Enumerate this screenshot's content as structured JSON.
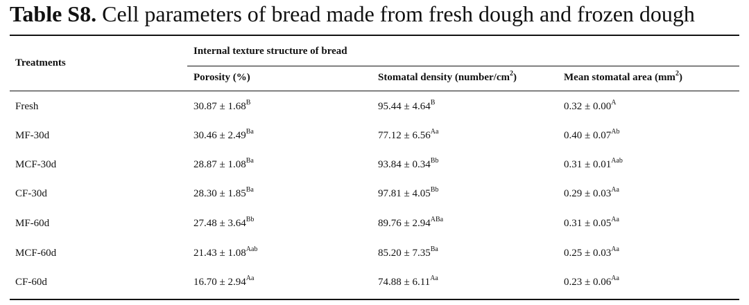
{
  "title": {
    "label": "Table S8.",
    "text": " Cell parameters of bread made from fresh dough and frozen dough"
  },
  "header": {
    "treatments": "Treatments",
    "group": "Internal texture structure of bread",
    "porosity": "Porosity (%)",
    "density_pre": "Stomatal density (number/cm",
    "density_sup": "2",
    "density_post": ")",
    "area_pre": "Mean stomatal area (mm",
    "area_sup": "2",
    "area_post": ")"
  },
  "rows": [
    {
      "treatment": "Fresh",
      "porosity": "30.87 ± 1.68",
      "porosity_sup": "B",
      "density": "95.44 ± 4.64",
      "density_sup": "B",
      "area": "0.32 ± 0.00",
      "area_sup": "A"
    },
    {
      "treatment": "MF-30d",
      "porosity": "30.46 ± 2.49",
      "porosity_sup": "Ba",
      "density": "77.12 ± 6.56",
      "density_sup": "Aa",
      "area": "0.40 ± 0.07",
      "area_sup": "Ab"
    },
    {
      "treatment": "MCF-30d",
      "porosity": "28.87 ± 1.08",
      "porosity_sup": "Ba",
      "density": "93.84 ± 0.34",
      "density_sup": "Bb",
      "area": "0.31 ± 0.01",
      "area_sup": "Aab"
    },
    {
      "treatment": "CF-30d",
      "porosity": "28.30 ± 1.85",
      "porosity_sup": "Ba",
      "density": "97.81 ± 4.05",
      "density_sup": "Bb",
      "area": "0.29 ± 0.03",
      "area_sup": "Aa"
    },
    {
      "treatment": "MF-60d",
      "porosity": "27.48 ± 3.64",
      "porosity_sup": "Bb",
      "density": "89.76 ± 2.94",
      "density_sup": "ABa",
      "area": "0.31 ± 0.05",
      "area_sup": "Aa"
    },
    {
      "treatment": "MCF-60d",
      "porosity": "21.43 ± 1.08",
      "porosity_sup": "Aab",
      "density": "85.20 ± 7.35",
      "density_sup": "Ba",
      "area": "0.25 ± 0.03",
      "area_sup": "Aa"
    },
    {
      "treatment": "CF-60d",
      "porosity": "16.70 ± 2.94",
      "porosity_sup": "Aa",
      "density": "74.88 ± 6.11",
      "density_sup": "Aa",
      "area": "0.23 ± 0.06",
      "area_sup": "Aa"
    }
  ]
}
